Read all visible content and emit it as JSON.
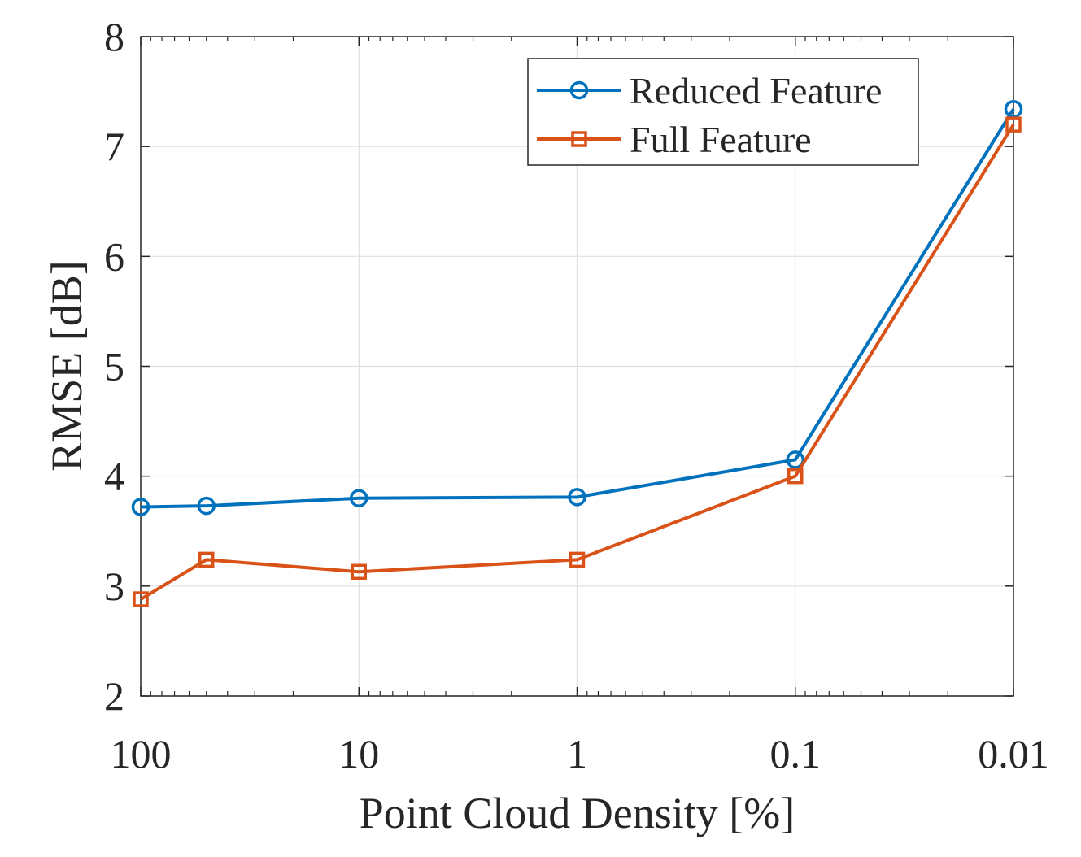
{
  "chart_data": {
    "type": "line",
    "xlabel": "Point Cloud Density [%]",
    "ylabel": "RMSE [dB]",
    "x_scale": "log",
    "x_reversed": true,
    "xlim": [
      100,
      0.01
    ],
    "ylim": [
      2,
      8
    ],
    "grid": true,
    "legend_position": "top-right",
    "x_ticks": [
      {
        "value": 100,
        "label": "100"
      },
      {
        "value": 10,
        "label": "10"
      },
      {
        "value": 1,
        "label": "1"
      },
      {
        "value": 0.1,
        "label": "0.1"
      },
      {
        "value": 0.01,
        "label": "0.01"
      }
    ],
    "y_ticks": [
      {
        "value": 2,
        "label": "2"
      },
      {
        "value": 3,
        "label": "3"
      },
      {
        "value": 4,
        "label": "4"
      },
      {
        "value": 5,
        "label": "5"
      },
      {
        "value": 6,
        "label": "6"
      },
      {
        "value": 7,
        "label": "7"
      },
      {
        "value": 8,
        "label": "8"
      }
    ],
    "series": [
      {
        "name": "Reduced Feature",
        "color": "#0072BD",
        "marker": "circle",
        "x": [
          100,
          50,
          10,
          1,
          0.1,
          0.01
        ],
        "y": [
          3.72,
          3.73,
          3.8,
          3.81,
          4.15,
          7.34
        ]
      },
      {
        "name": "Full Feature",
        "color": "#D95319",
        "marker": "square",
        "x": [
          100,
          50,
          10,
          1,
          0.1,
          0.01
        ],
        "y": [
          2.88,
          3.24,
          3.13,
          3.24,
          4.0,
          7.2
        ]
      }
    ]
  }
}
